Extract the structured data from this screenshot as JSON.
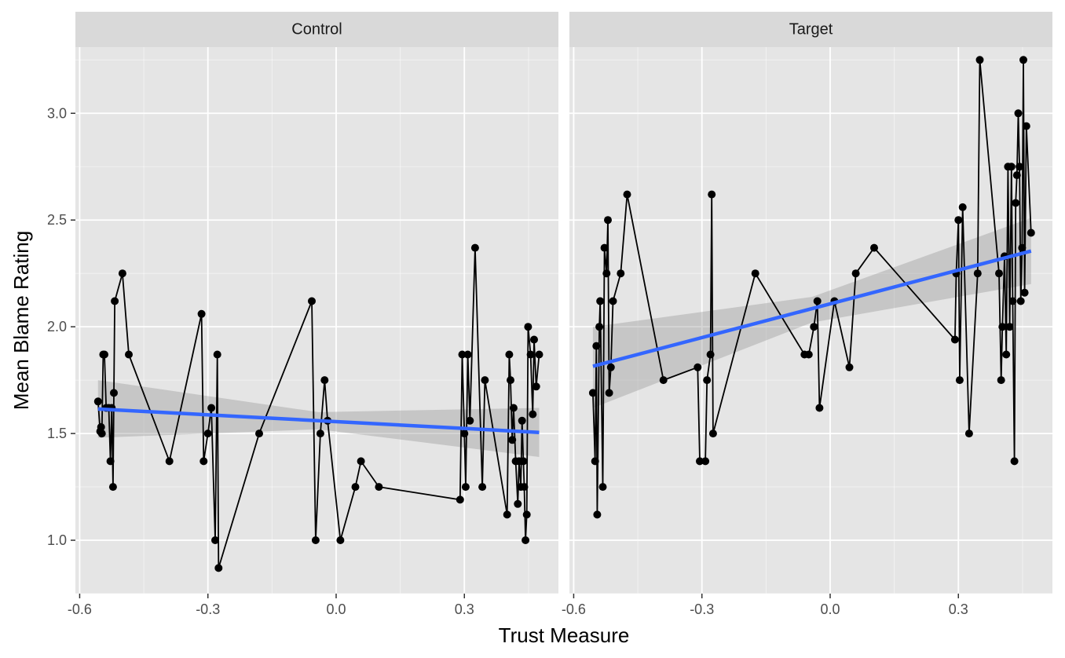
{
  "chart_data": {
    "type": "scatter",
    "facets": [
      "Control",
      "Target"
    ],
    "xlabel": "Trust Measure",
    "ylabel": "Mean Blame Rating",
    "xlim": [
      -0.61,
      0.52
    ],
    "ylim": [
      0.75,
      3.31
    ],
    "x_ticks": [
      -0.6,
      -0.3,
      0.0,
      0.3
    ],
    "x_tick_labels": [
      "-0.6",
      "-0.3",
      "0.0",
      "0.3"
    ],
    "y_ticks": [
      1.0,
      1.5,
      2.0,
      2.5,
      3.0
    ],
    "y_tick_labels": [
      "1.0",
      "1.5",
      "2.0",
      "2.5",
      "3.0"
    ],
    "grid": true,
    "colors": {
      "panel": "#e5e5e5",
      "strip": "#d9d9d9",
      "grid_major": "#ffffff",
      "points": "#000000",
      "fit_line": "#3366ff",
      "ribbon": "#999999"
    },
    "panels": [
      {
        "name": "Control",
        "points": [
          [
            -0.557,
            1.65
          ],
          [
            -0.552,
            1.51
          ],
          [
            -0.55,
            1.53
          ],
          [
            -0.548,
            1.5
          ],
          [
            -0.545,
            1.87
          ],
          [
            -0.542,
            1.87
          ],
          [
            -0.538,
            1.62
          ],
          [
            -0.532,
            1.62
          ],
          [
            -0.528,
            1.37
          ],
          [
            -0.525,
            1.62
          ],
          [
            -0.522,
            1.25
          ],
          [
            -0.52,
            1.69
          ],
          [
            -0.518,
            2.12
          ],
          [
            -0.5,
            2.25
          ],
          [
            -0.485,
            1.87
          ],
          [
            -0.39,
            1.37
          ],
          [
            -0.315,
            2.06
          ],
          [
            -0.31,
            1.37
          ],
          [
            -0.3,
            1.5
          ],
          [
            -0.292,
            1.62
          ],
          [
            -0.283,
            1.0
          ],
          [
            -0.278,
            1.87
          ],
          [
            -0.275,
            0.87
          ],
          [
            -0.18,
            1.5
          ],
          [
            -0.057,
            2.12
          ],
          [
            -0.048,
            1.0
          ],
          [
            -0.037,
            1.5
          ],
          [
            -0.027,
            1.75
          ],
          [
            -0.02,
            1.56
          ],
          [
            0.01,
            1.0
          ],
          [
            0.045,
            1.25
          ],
          [
            0.058,
            1.37
          ],
          [
            0.1,
            1.25
          ],
          [
            0.29,
            1.19
          ],
          [
            0.295,
            1.87
          ],
          [
            0.3,
            1.5
          ],
          [
            0.303,
            1.25
          ],
          [
            0.308,
            1.87
          ],
          [
            0.313,
            1.56
          ],
          [
            0.325,
            2.37
          ],
          [
            0.342,
            1.25
          ],
          [
            0.348,
            1.75
          ],
          [
            0.4,
            1.12
          ],
          [
            0.405,
            1.87
          ],
          [
            0.408,
            1.75
          ],
          [
            0.412,
            1.47
          ],
          [
            0.415,
            1.62
          ],
          [
            0.42,
            1.37
          ],
          [
            0.425,
            1.17
          ],
          [
            0.428,
            1.37
          ],
          [
            0.432,
            1.25
          ],
          [
            0.435,
            1.56
          ],
          [
            0.438,
            1.37
          ],
          [
            0.44,
            1.25
          ],
          [
            0.443,
            1.0
          ],
          [
            0.446,
            1.12
          ],
          [
            0.449,
            2.0
          ],
          [
            0.455,
            1.87
          ],
          [
            0.46,
            1.59
          ],
          [
            0.463,
            1.94
          ],
          [
            0.468,
            1.72
          ],
          [
            0.475,
            1.87
          ]
        ],
        "fit": {
          "x_start": -0.557,
          "y_start": 1.615,
          "x_end": 0.475,
          "y_end": 1.505
        },
        "ribbon": {
          "lower_start": 1.48,
          "upper_start": 1.75,
          "lower_mid": 1.52,
          "upper_mid": 1.6,
          "lower_end": 1.39,
          "upper_end": 1.62
        }
      },
      {
        "name": "Target",
        "points": [
          [
            -0.555,
            1.69
          ],
          [
            -0.55,
            1.37
          ],
          [
            -0.547,
            1.91
          ],
          [
            -0.545,
            1.12
          ],
          [
            -0.54,
            2.0
          ],
          [
            -0.538,
            2.12
          ],
          [
            -0.532,
            1.25
          ],
          [
            -0.528,
            2.37
          ],
          [
            -0.523,
            2.25
          ],
          [
            -0.52,
            2.5
          ],
          [
            -0.517,
            1.69
          ],
          [
            -0.513,
            1.81
          ],
          [
            -0.508,
            2.12
          ],
          [
            -0.49,
            2.25
          ],
          [
            -0.475,
            2.62
          ],
          [
            -0.39,
            1.75
          ],
          [
            -0.31,
            1.81
          ],
          [
            -0.305,
            1.37
          ],
          [
            -0.292,
            1.37
          ],
          [
            -0.288,
            1.75
          ],
          [
            -0.28,
            1.87
          ],
          [
            -0.277,
            2.62
          ],
          [
            -0.274,
            1.5
          ],
          [
            -0.175,
            2.25
          ],
          [
            -0.06,
            1.87
          ],
          [
            -0.05,
            1.87
          ],
          [
            -0.038,
            2.0
          ],
          [
            -0.03,
            2.12
          ],
          [
            -0.025,
            1.62
          ],
          [
            0.01,
            2.12
          ],
          [
            0.045,
            1.81
          ],
          [
            0.06,
            2.25
          ],
          [
            0.103,
            2.37
          ],
          [
            0.292,
            1.94
          ],
          [
            0.295,
            2.25
          ],
          [
            0.3,
            2.5
          ],
          [
            0.303,
            1.75
          ],
          [
            0.31,
            2.56
          ],
          [
            0.325,
            1.5
          ],
          [
            0.345,
            2.25
          ],
          [
            0.35,
            3.25
          ],
          [
            0.395,
            2.25
          ],
          [
            0.4,
            1.75
          ],
          [
            0.403,
            2.0
          ],
          [
            0.408,
            2.33
          ],
          [
            0.412,
            1.87
          ],
          [
            0.416,
            2.75
          ],
          [
            0.42,
            2.0
          ],
          [
            0.424,
            2.75
          ],
          [
            0.427,
            2.12
          ],
          [
            0.431,
            1.37
          ],
          [
            0.434,
            2.58
          ],
          [
            0.437,
            2.71
          ],
          [
            0.44,
            3.0
          ],
          [
            0.443,
            2.75
          ],
          [
            0.446,
            2.12
          ],
          [
            0.449,
            2.37
          ],
          [
            0.452,
            3.25
          ],
          [
            0.455,
            2.16
          ],
          [
            0.459,
            2.94
          ],
          [
            0.47,
            2.44
          ]
        ],
        "fit": {
          "x_start": -0.555,
          "y_start": 1.815,
          "x_end": 0.47,
          "y_end": 2.355
        },
        "ribbon": {
          "lower_start": 1.62,
          "upper_start": 2.0,
          "lower_mid": 2.02,
          "upper_mid": 2.14,
          "lower_end": 2.2,
          "upper_end": 2.51
        }
      }
    ]
  }
}
